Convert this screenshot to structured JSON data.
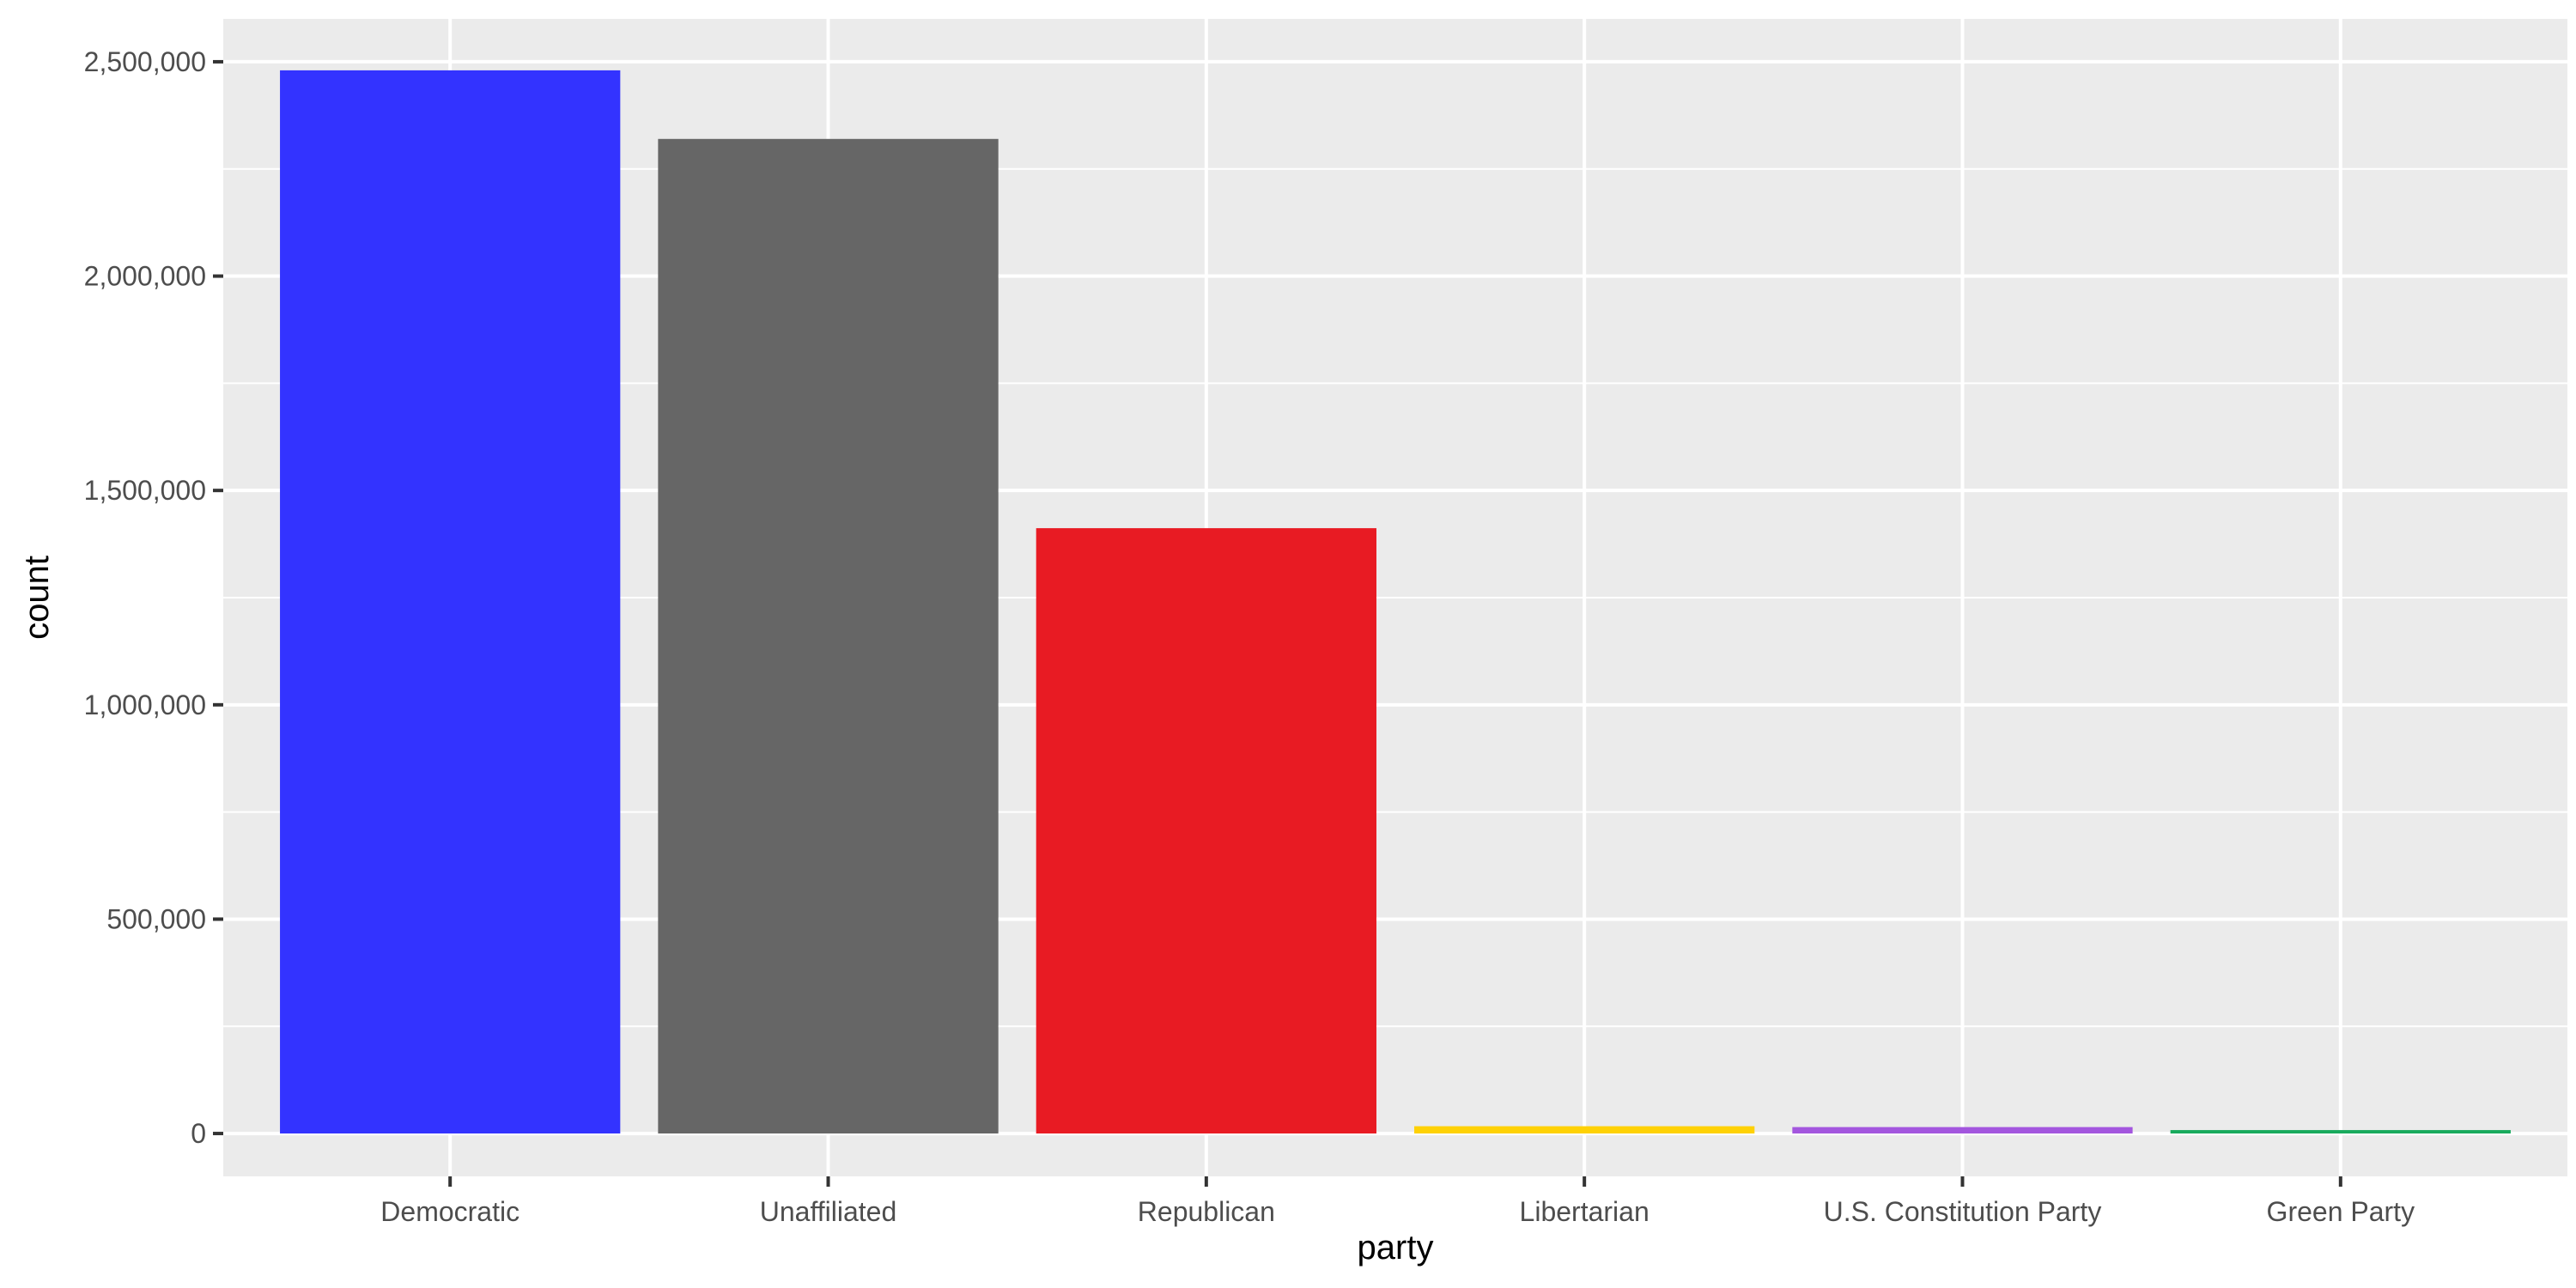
{
  "chart_data": {
    "type": "bar",
    "title": "",
    "xlabel": "party",
    "ylabel": "count",
    "categories": [
      "Democratic",
      "Unaffiliated",
      "Republican",
      "Libertarian",
      "U.S. Constitution Party",
      "Green Party"
    ],
    "values": [
      2480000,
      2320000,
      1412000,
      17000,
      15000,
      8000
    ],
    "colors": [
      "#3333FF",
      "#666666",
      "#E81B23",
      "#FED105",
      "#A356DE",
      "#17AA5C"
    ],
    "ylim": [
      -100000,
      2600000
    ],
    "yticks": [
      0,
      500000,
      1000000,
      1500000,
      2000000,
      2500000
    ],
    "ytick_labels": [
      "0",
      "500,000",
      "1,000,000",
      "1,500,000",
      "2,000,000",
      "2,500,000"
    ],
    "grid": true,
    "legend": "none",
    "panel_background": "#EBEBEB"
  }
}
